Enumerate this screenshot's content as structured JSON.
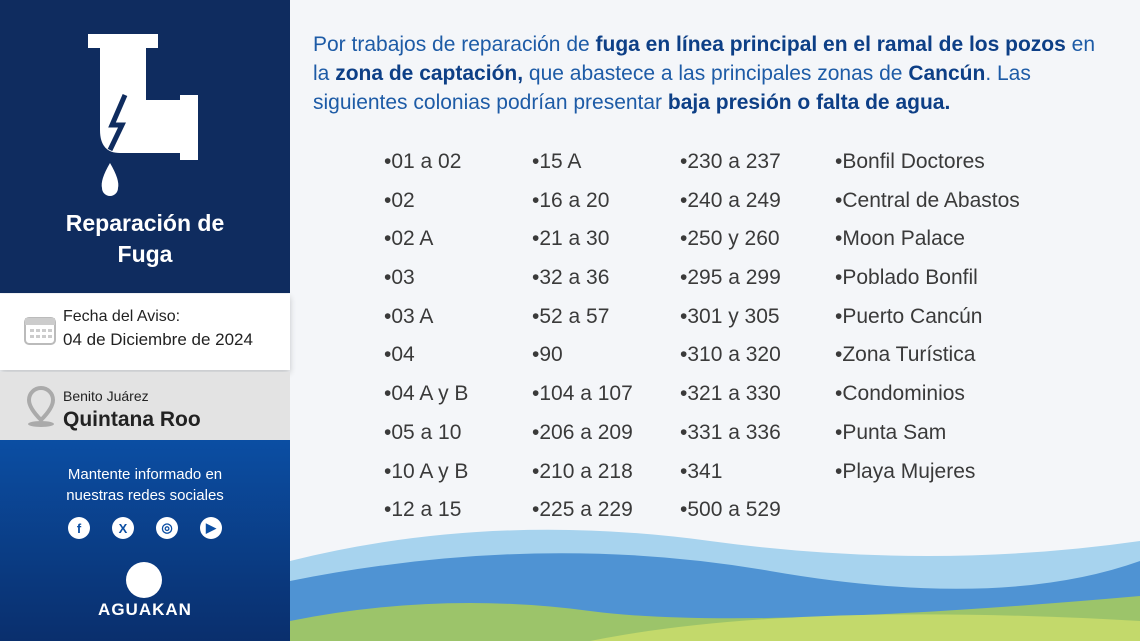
{
  "sidebar": {
    "title_line1": "Reparación de",
    "title_line2": "Fuga",
    "date_label": "Fecha del Aviso:",
    "date_value": "04 de Diciembre de 2024",
    "municipality": "Benito Juárez",
    "state": "Quintana Roo",
    "social_text_line1": "Mantente informado en",
    "social_text_line2": "nuestras redes sociales",
    "social_icons": [
      "facebook-icon",
      "x-icon",
      "instagram-icon",
      "youtube-icon"
    ],
    "brand": "AGUAKAN"
  },
  "notice": {
    "p1": "Por trabajos de reparación de ",
    "b1": "fuga en línea principal en el ramal de los pozos",
    "p2": " en la ",
    "b2": "zona de captación,",
    "p3": " que abastece a las principales zonas de ",
    "b3": "Cancún",
    "p4": ". Las siguientes colonias podrían presentar ",
    "b4": "baja presión o falta de agua."
  },
  "colonias": [
    [
      "•01 a 02",
      "•02",
      "•02 A",
      "•03",
      "•03 A",
      "•04",
      "•04 A y B",
      "•05 a 10",
      "•10 A y B",
      "•12 a 15"
    ],
    [
      "•15 A",
      "•16 a 20",
      "•21 a 30",
      "•32 a 36",
      "•52 a 57",
      "•90",
      "•104 a 107",
      "•206 a 209",
      "•210 a 218",
      "•225 a 229"
    ],
    [
      "•230 a 237",
      "•240 a 249",
      "•250 y 260",
      "•295 a 299",
      "•301 y 305",
      "•310 a 320",
      "•321 a 330",
      "•331 a 336",
      "•341",
      "•500 a 529"
    ],
    [
      "•Bonfil Doctores",
      "•Central de Abastos",
      "•Moon Palace",
      "•Poblado Bonfil",
      "•Puerto Cancún",
      "•Zona Turística",
      "•Condominios",
      "•Punta Sam",
      "•Playa Mujeres"
    ]
  ],
  "colors": {
    "navy": "#0f2c5f",
    "blue": "#0b4ea3",
    "text_blue": "#1d5ba6"
  }
}
